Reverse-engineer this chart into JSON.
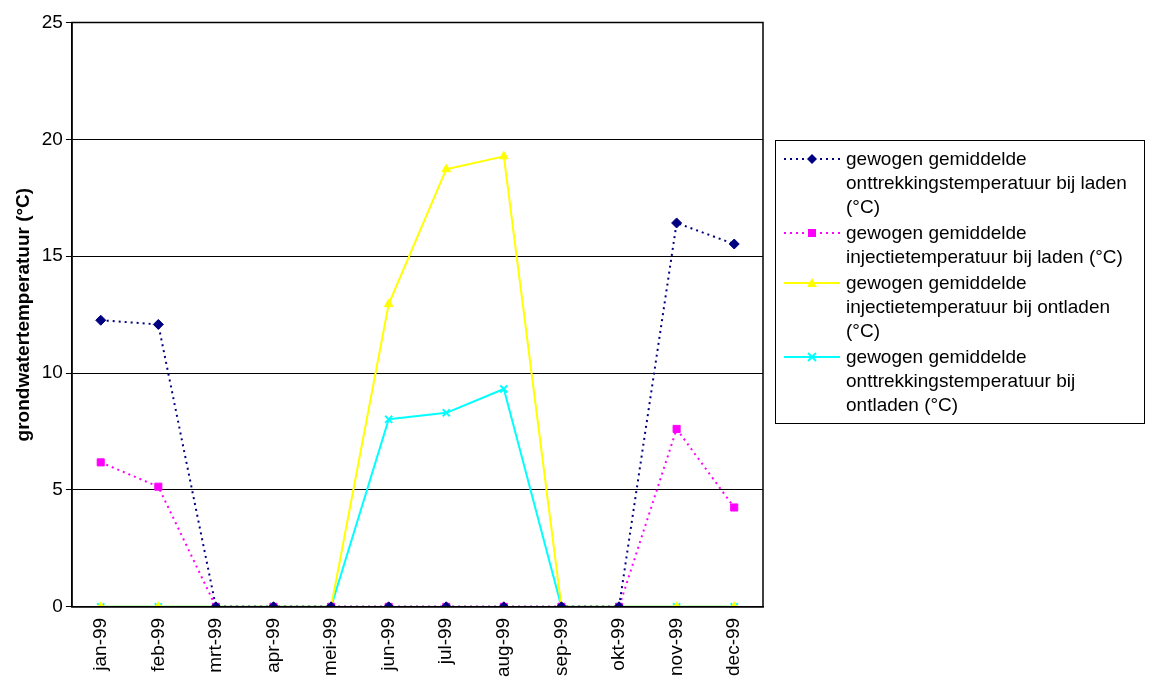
{
  "chart_data": {
    "type": "line",
    "ylabel": "grondwatertemperatuur (°C)",
    "categories": [
      "jan-99",
      "feb-99",
      "mrt-99",
      "apr-99",
      "mei-99",
      "jun-99",
      "jul-99",
      "aug-99",
      "sep-99",
      "okt-99",
      "nov-99",
      "dec-99"
    ],
    "series": [
      {
        "name": "gewogen gemiddelde onttrekkingstemperatuur bij laden (°C)",
        "color": "#000080",
        "marker": "diamond",
        "line_style": "dotted",
        "values": [
          12.26,
          12.08,
          0,
          0,
          0,
          0,
          0,
          0,
          0,
          0,
          16.42,
          15.52
        ]
      },
      {
        "name": "gewogen gemiddelde injectietemperatuur bij laden (°C)",
        "color": "#ff00ff",
        "marker": "square",
        "line_style": "dotted",
        "values": [
          6.18,
          5.14,
          0,
          0,
          0,
          0,
          0,
          0,
          0,
          0,
          7.61,
          4.25
        ]
      },
      {
        "name": "gewogen gemiddelde injectietemperatuur bij ontladen (°C)",
        "color": "#ffff00",
        "marker": "triangle",
        "line_style": "solid",
        "values": [
          0,
          0,
          0,
          0,
          0,
          12.95,
          18.72,
          19.27,
          0,
          0,
          0,
          0
        ]
      },
      {
        "name": "gewogen gemiddelde onttrekkingstemperatuur bij ontladen (°C)",
        "color": "#00ffff",
        "marker": "cross",
        "line_style": "solid",
        "values": [
          0,
          0,
          0,
          0,
          0,
          8.02,
          8.3,
          9.32,
          0,
          0,
          0,
          0
        ]
      }
    ],
    "ylim": [
      0,
      25
    ],
    "yticks": [
      0,
      5,
      10,
      15,
      20,
      25
    ],
    "grid": "y",
    "legend": "right"
  }
}
